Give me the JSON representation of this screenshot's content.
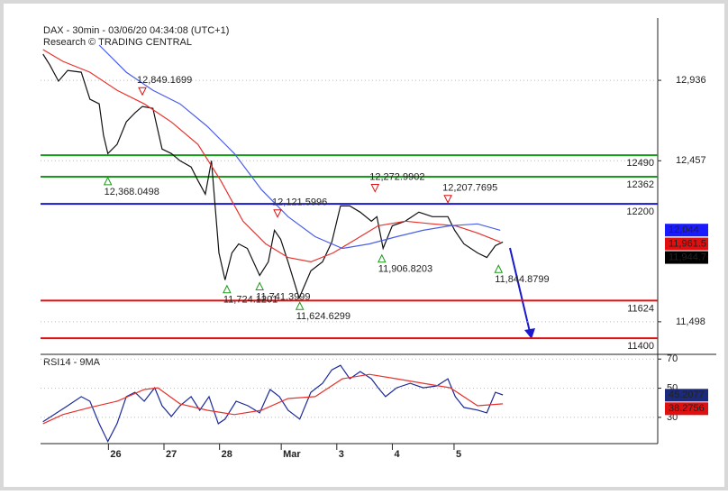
{
  "chart_data": [
    {
      "type": "line",
      "title": "DAX - 30min - 03/06/20 04:34:08 (UTC+1)",
      "subtitle": "Research © TRADING CENTRAL",
      "xlim": [
        0,
        100
      ],
      "ylim": [
        11304,
        13307
      ],
      "xticks": [
        {
          "value": 11,
          "label": "26"
        },
        {
          "value": 20,
          "label": "27"
        },
        {
          "value": 29,
          "label": "28"
        },
        {
          "value": 39,
          "label": "Mar"
        },
        {
          "value": 48,
          "label": "3"
        },
        {
          "value": 57,
          "label": "4"
        },
        {
          "value": 67,
          "label": "5"
        }
      ],
      "yticks": [
        {
          "value": 12936,
          "label": "12,936"
        },
        {
          "value": 12457,
          "label": "12,457"
        },
        {
          "value": 11498,
          "label": "11,498"
        }
      ],
      "grid": true,
      "series": [
        {
          "color": "#111111",
          "x": [
            0.4,
            1.5,
            2.9,
            4.4,
            6.6,
            8.0,
            9.5,
            10.2,
            10.9,
            12.4,
            13.9,
            15.3,
            16.5,
            18.2,
            19.7,
            21.2,
            22.6,
            24.4,
            25.5,
            26.7,
            27.7,
            28.9,
            29.9,
            31.0,
            32.1,
            33.5,
            35.5,
            36.9,
            37.9,
            38.9,
            40.1,
            41.9,
            43.8,
            45.7,
            47.2,
            48.6,
            50.1,
            51.8,
            53.6,
            54.5,
            55.5,
            57.0,
            59.1,
            61.3,
            63.5,
            66.0,
            67.1,
            68.6,
            70.8,
            72.3,
            73.7,
            74.9
          ],
          "values": [
            13092,
            13027,
            12931,
            12995,
            12984,
            12823,
            12796,
            12608,
            12500,
            12554,
            12689,
            12742,
            12780,
            12769,
            12527,
            12500,
            12457,
            12420,
            12339,
            12258,
            12457,
            11908,
            11747,
            11908,
            11962,
            11935,
            11774,
            11855,
            12043,
            11989,
            11855,
            11639,
            11801,
            11855,
            11973,
            12188,
            12188,
            12151,
            12097,
            12124,
            11935,
            12070,
            12097,
            12151,
            12124,
            12124,
            12043,
            11962,
            11908,
            11881,
            11951,
            11973
          ]
        },
        {
          "color": "#e8322c",
          "x": [
            0.4,
            3.6,
            8.0,
            12.4,
            16.8,
            21.2,
            25.5,
            29.2,
            32.8,
            36.5,
            40.1,
            43.8,
            47.4,
            51.1,
            54.7,
            59.1,
            63.5,
            67.2,
            70.8,
            74.5
          ],
          "values": [
            13119,
            13049,
            12984,
            12877,
            12796,
            12688,
            12554,
            12339,
            12097,
            11962,
            11881,
            11855,
            11908,
            11989,
            12070,
            12097,
            12081,
            12070,
            12027,
            11973
          ]
        },
        {
          "color": "#4a5ee8",
          "x": [
            9.5,
            13.9,
            18.2,
            22.6,
            27.0,
            31.4,
            35.8,
            40.1,
            44.5,
            48.9,
            53.3,
            57.7,
            62.0,
            66.4,
            70.8,
            74.5
          ],
          "values": [
            13146,
            12984,
            12877,
            12796,
            12662,
            12500,
            12285,
            12124,
            12005,
            11935,
            11962,
            12005,
            12043,
            12070,
            12081,
            12043
          ]
        }
      ],
      "levels": [
        {
          "value": 12490,
          "color": "#1a9a1a"
        },
        {
          "value": 12362,
          "color": "#1a9a1a"
        },
        {
          "value": 12200,
          "color": "#1a1acc"
        },
        {
          "value": 11624,
          "color": "#e01010"
        },
        {
          "value": 11400,
          "color": "#e01010"
        }
      ],
      "highs": [
        {
          "x": 16.5,
          "value": 12849.1699,
          "label": "12,849.1699"
        },
        {
          "x": 38.4,
          "value": 12121.5996,
          "label": "12,121.5996"
        },
        {
          "x": 54.2,
          "value": 12272.9902,
          "label": "12,272.9902"
        },
        {
          "x": 66.0,
          "value": 12207.7695,
          "label": "12,207.7695"
        }
      ],
      "lows": [
        {
          "x": 10.9,
          "value": 12368.0498,
          "label": "12,368.0498"
        },
        {
          "x": 30.2,
          "value": 11724.1201,
          "label": "11,724.1201"
        },
        {
          "x": 35.5,
          "value": 11741.3999,
          "label": "11,741.3999"
        },
        {
          "x": 42.0,
          "value": 11624.6299,
          "label": "11,624.6299"
        },
        {
          "x": 55.3,
          "value": 11906.8203,
          "label": "11,906.8203"
        },
        {
          "x": 74.2,
          "value": 11844.8799,
          "label": "11,844.8799"
        }
      ],
      "last_values": [
        {
          "value": 12044,
          "label": "12,044",
          "color": "#1a1aff"
        },
        {
          "value": 11961.5,
          "label": "11,961.5",
          "color": "#e01010"
        },
        {
          "value": 11944.7,
          "label": "11,944.7",
          "color": "#000000"
        }
      ]
    },
    {
      "type": "line",
      "title": "RSI14 - 9MA",
      "xlim": [
        0,
        100
      ],
      "ylim": [
        12,
        72
      ],
      "yticks": [
        70,
        50,
        30
      ],
      "grid": true,
      "series": [
        {
          "color": "#1b2a9a",
          "x": [
            0.4,
            2.2,
            4.4,
            6.6,
            8.0,
            9.5,
            10.9,
            12.4,
            13.9,
            15.3,
            16.8,
            18.5,
            19.7,
            21.2,
            22.6,
            24.4,
            25.8,
            27.3,
            28.8,
            29.9,
            31.7,
            33.6,
            35.5,
            37.2,
            38.7,
            40.1,
            42.0,
            43.8,
            45.7,
            47.2,
            48.6,
            50.1,
            51.8,
            53.6,
            54.7,
            55.9,
            57.7,
            59.9,
            62.0,
            64.2,
            66.0,
            67.2,
            68.6,
            70.8,
            72.3,
            73.7,
            74.9
          ],
          "values": [
            27.0,
            31.9,
            38.0,
            44.2,
            41.1,
            25.7,
            13.4,
            25.7,
            44.2,
            47.2,
            41.1,
            50.3,
            38.0,
            30.6,
            38.0,
            44.2,
            34.9,
            44.2,
            25.7,
            28.8,
            41.1,
            38.0,
            33.1,
            49.1,
            44.2,
            34.9,
            28.8,
            47.2,
            53.4,
            62.6,
            65.7,
            56.5,
            61.4,
            56.5,
            50.3,
            44.2,
            50.3,
            53.4,
            50.3,
            51.6,
            56.5,
            44.2,
            36.8,
            35.0,
            33.1,
            47.2,
            45.4
          ]
        },
        {
          "color": "#e8322c",
          "x": [
            0.4,
            3.6,
            8.0,
            12.4,
            16.8,
            19.0,
            22.6,
            27.0,
            31.4,
            35.8,
            40.1,
            44.5,
            48.9,
            53.3,
            57.7,
            62.0,
            66.4,
            70.8,
            74.9
          ],
          "values": [
            25.7,
            31.9,
            36.8,
            41.1,
            49.1,
            50.3,
            39.3,
            34.9,
            31.9,
            34.9,
            42.9,
            44.2,
            56.5,
            59.5,
            56.5,
            53.4,
            50.3,
            38.0,
            39.3
          ]
        }
      ],
      "last_values": [
        {
          "value": 45.2077,
          "label": "45.2077",
          "color": "#1b2a7a"
        },
        {
          "value": 38.2756,
          "label": "38.2756",
          "color": "#e01010"
        }
      ]
    }
  ]
}
